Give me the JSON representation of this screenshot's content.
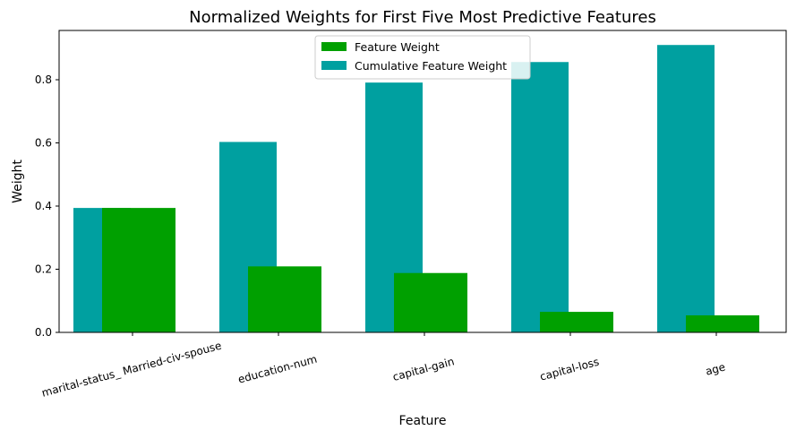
{
  "chart_data": {
    "type": "bar",
    "title": "Normalized Weights for First Five Most Predictive Features",
    "xlabel": "Feature",
    "ylabel": "Weight",
    "categories": [
      "marital-status_ Married-civ-spouse",
      "education-num",
      "capital-gain",
      "capital-loss",
      "age"
    ],
    "series": [
      {
        "name": "Feature Weight",
        "color": "#00a000",
        "values": [
          0.394,
          0.209,
          0.188,
          0.065,
          0.054
        ]
      },
      {
        "name": "Cumulative Feature Weight",
        "color": "#00a0a0",
        "values": [
          0.394,
          0.603,
          0.791,
          0.856,
          0.91
        ]
      }
    ],
    "ylim": [
      0,
      0.956
    ],
    "yticks": [
      0.0,
      0.2,
      0.4,
      0.6,
      0.8
    ],
    "ytick_labels": [
      "0.0",
      "0.2",
      "0.4",
      "0.6",
      "0.8"
    ],
    "grid": false,
    "legend_position": "top-center"
  }
}
